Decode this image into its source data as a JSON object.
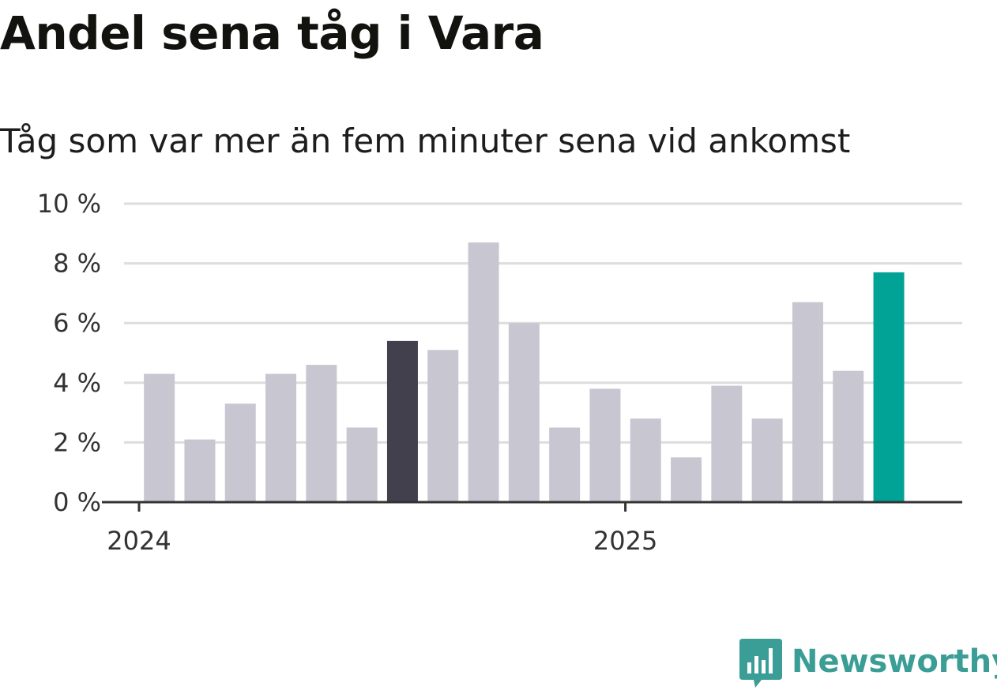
{
  "title": "Andel sena tåg i Vara",
  "subtitle": "Tåg som var mer än fem minuter sena vid ankomst",
  "logo": {
    "text": "Newsworthy",
    "icon": "bar-chart-speech-bubble-icon",
    "color": "#3a9e96"
  },
  "chart_data": {
    "type": "bar",
    "title": "Andel sena tåg i Vara",
    "subtitle": "Tåg som var mer än fem minuter sena vid ankomst",
    "xlabel": "",
    "ylabel": "",
    "ylim": [
      0,
      10
    ],
    "y_ticks": [
      {
        "value": 0,
        "label": "0 %"
      },
      {
        "value": 2,
        "label": "2 %"
      },
      {
        "value": 4,
        "label": "4 %"
      },
      {
        "value": 6,
        "label": "6 %"
      },
      {
        "value": 8,
        "label": "8 %"
      },
      {
        "value": 10,
        "label": "10 %"
      }
    ],
    "x_ticks": [
      {
        "month_index": 0,
        "label": "2024"
      },
      {
        "month_index": 12,
        "label": "2025"
      }
    ],
    "grid": true,
    "colors": {
      "default": "#c8c7d1",
      "highlight_dark": "#42404d",
      "highlight_latest": "#00a396"
    },
    "bars": [
      {
        "month_index": 0.5,
        "value": 4.3,
        "color": "default"
      },
      {
        "month_index": 1.5,
        "value": 2.1,
        "color": "default"
      },
      {
        "month_index": 2.5,
        "value": 3.3,
        "color": "default"
      },
      {
        "month_index": 3.5,
        "value": 4.3,
        "color": "default"
      },
      {
        "month_index": 4.5,
        "value": 4.6,
        "color": "default"
      },
      {
        "month_index": 5.5,
        "value": 2.5,
        "color": "default"
      },
      {
        "month_index": 6.5,
        "value": 5.4,
        "color": "highlight_dark"
      },
      {
        "month_index": 7.5,
        "value": 5.1,
        "color": "default"
      },
      {
        "month_index": 8.5,
        "value": 8.7,
        "color": "default"
      },
      {
        "month_index": 9.5,
        "value": 6.0,
        "color": "default"
      },
      {
        "month_index": 10.5,
        "value": 2.5,
        "color": "default"
      },
      {
        "month_index": 11.5,
        "value": 3.8,
        "color": "default"
      },
      {
        "month_index": 12.5,
        "value": 2.8,
        "color": "default"
      },
      {
        "month_index": 13.5,
        "value": 1.5,
        "color": "default"
      },
      {
        "month_index": 14.5,
        "value": 3.9,
        "color": "default"
      },
      {
        "month_index": 15.5,
        "value": 2.8,
        "color": "default"
      },
      {
        "month_index": 16.5,
        "value": 6.7,
        "color": "default"
      },
      {
        "month_index": 17.5,
        "value": 4.4,
        "color": "default"
      },
      {
        "month_index": 18.5,
        "value": 7.7,
        "color": "highlight_latest"
      }
    ]
  }
}
